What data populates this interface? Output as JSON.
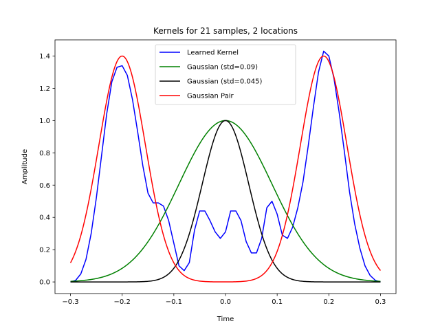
{
  "chart_data": {
    "type": "line",
    "title": "Kernels for 21 samples, 2 locations",
    "xlabel": "Time",
    "ylabel": "Amplitude",
    "xlim": [
      -0.33,
      0.33
    ],
    "ylim": [
      -0.072,
      1.5
    ],
    "xticks": [
      -0.3,
      -0.2,
      -0.1,
      0.0,
      0.1,
      0.2,
      0.3
    ],
    "xtick_labels": [
      "−0.3",
      "−0.2",
      "−0.1",
      "0.0",
      "0.1",
      "0.2",
      "0.3"
    ],
    "yticks": [
      0.0,
      0.2,
      0.4,
      0.6,
      0.8,
      1.0,
      1.2,
      1.4
    ],
    "ytick_labels": [
      "0.0",
      "0.2",
      "0.4",
      "0.6",
      "0.8",
      "1.0",
      "1.2",
      "1.4"
    ],
    "grid": false,
    "legend_position": "top-center",
    "series": [
      {
        "name": "Learned Kernel",
        "color": "#0000ff",
        "points": [
          [
            -0.3,
            0.0
          ],
          [
            -0.29,
            0.01
          ],
          [
            -0.28,
            0.05
          ],
          [
            -0.27,
            0.14
          ],
          [
            -0.26,
            0.3
          ],
          [
            -0.25,
            0.52
          ],
          [
            -0.24,
            0.78
          ],
          [
            -0.23,
            1.04
          ],
          [
            -0.22,
            1.24
          ],
          [
            -0.21,
            1.33
          ],
          [
            -0.2,
            1.34
          ],
          [
            -0.19,
            1.28
          ],
          [
            -0.18,
            1.13
          ],
          [
            -0.17,
            0.93
          ],
          [
            -0.16,
            0.72
          ],
          [
            -0.15,
            0.55
          ],
          [
            -0.14,
            0.49
          ],
          [
            -0.13,
            0.49
          ],
          [
            -0.12,
            0.47
          ],
          [
            -0.11,
            0.38
          ],
          [
            -0.1,
            0.24
          ],
          [
            -0.09,
            0.1
          ],
          [
            -0.08,
            0.07
          ],
          [
            -0.07,
            0.12
          ],
          [
            -0.06,
            0.32
          ],
          [
            -0.05,
            0.44
          ],
          [
            -0.04,
            0.44
          ],
          [
            -0.03,
            0.38
          ],
          [
            -0.02,
            0.31
          ],
          [
            -0.01,
            0.27
          ],
          [
            0.0,
            0.31
          ],
          [
            0.01,
            0.44
          ],
          [
            0.02,
            0.44
          ],
          [
            0.03,
            0.38
          ],
          [
            0.04,
            0.25
          ],
          [
            0.05,
            0.18
          ],
          [
            0.06,
            0.18
          ],
          [
            0.07,
            0.27
          ],
          [
            0.08,
            0.46
          ],
          [
            0.09,
            0.5
          ],
          [
            0.1,
            0.42
          ],
          [
            0.11,
            0.29
          ],
          [
            0.12,
            0.27
          ],
          [
            0.13,
            0.34
          ],
          [
            0.14,
            0.46
          ],
          [
            0.15,
            0.62
          ],
          [
            0.16,
            0.84
          ],
          [
            0.17,
            1.08
          ],
          [
            0.18,
            1.3
          ],
          [
            0.19,
            1.43
          ],
          [
            0.2,
            1.4
          ],
          [
            0.21,
            1.26
          ],
          [
            0.22,
            1.05
          ],
          [
            0.23,
            0.81
          ],
          [
            0.24,
            0.56
          ],
          [
            0.25,
            0.36
          ],
          [
            0.26,
            0.21
          ],
          [
            0.27,
            0.1
          ],
          [
            0.28,
            0.04
          ],
          [
            0.29,
            0.01
          ],
          [
            0.3,
            0.0
          ]
        ]
      },
      {
        "name": "Gaussian (std=0.09)",
        "color": "#008000",
        "function": "gaussian",
        "amplitude": 1.0,
        "centers": [
          0.0
        ],
        "std": 0.09
      },
      {
        "name": "Gaussian (std=0.045)",
        "color": "#000000",
        "function": "gaussian",
        "amplitude": 1.0,
        "centers": [
          0.0
        ],
        "std": 0.045
      },
      {
        "name": "Gaussian Pair",
        "color": "#ff0000",
        "function": "gaussian_pair",
        "amplitude": 1.4,
        "centers": [
          -0.2,
          0.19
        ],
        "std": 0.045
      }
    ]
  }
}
